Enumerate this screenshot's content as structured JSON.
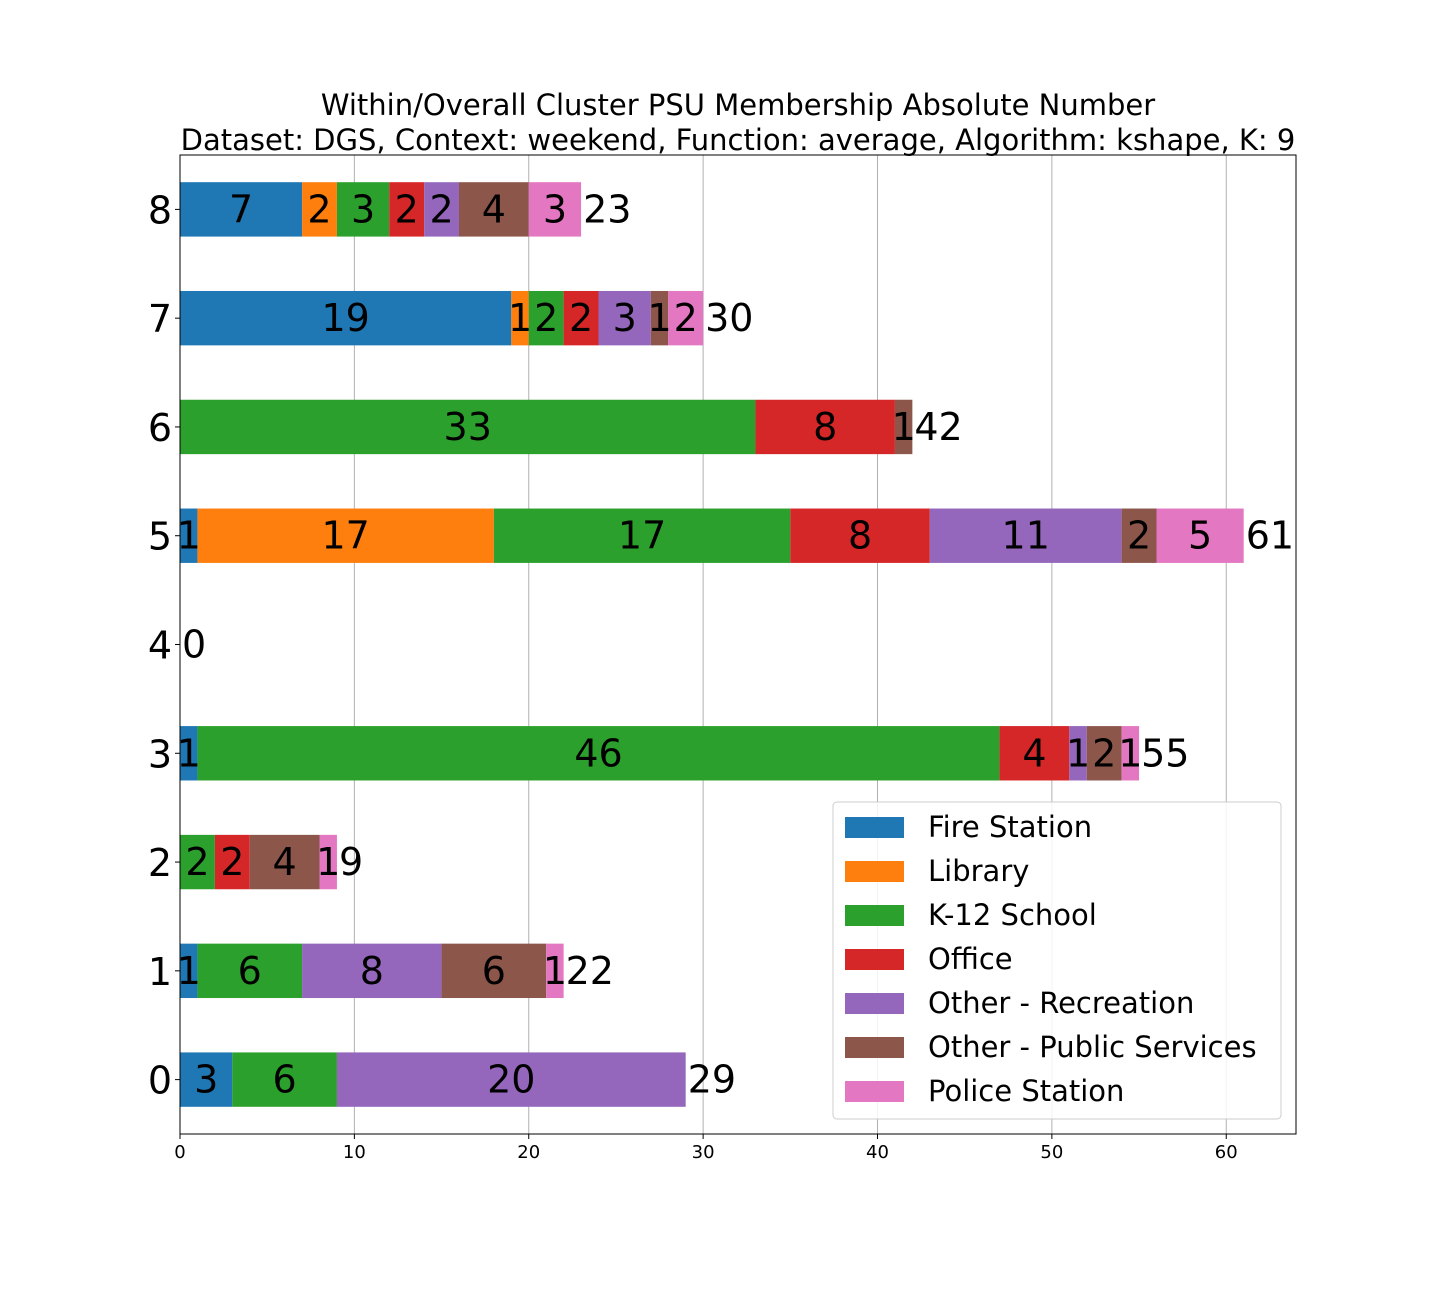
{
  "chart_data": {
    "type": "bar",
    "orientation": "horizontal",
    "stacked": true,
    "title": "Within/Overall Cluster PSU Membership Absolute Number",
    "subtitle": "Dataset: DGS, Context: weekend, Function: average, Algorithm: kshape, K: 9",
    "xlabel": "",
    "ylabel": "",
    "xlim": [
      0,
      64
    ],
    "xticks": [
      "0",
      "10",
      "20",
      "30",
      "40",
      "50",
      "60"
    ],
    "grid": "vertical",
    "legend_position": "lower-right",
    "categories": [
      "0",
      "1",
      "2",
      "3",
      "4",
      "5",
      "6",
      "7",
      "8"
    ],
    "series": [
      {
        "name": "Fire Station",
        "color": "#1f77b4",
        "values": [
          3,
          1,
          0,
          1,
          0,
          1,
          0,
          19,
          7
        ]
      },
      {
        "name": "Library",
        "color": "#ff7f0e",
        "values": [
          0,
          0,
          0,
          0,
          0,
          17,
          0,
          1,
          2
        ]
      },
      {
        "name": "K-12 School",
        "color": "#2ca02c",
        "values": [
          6,
          6,
          2,
          46,
          0,
          17,
          33,
          2,
          3
        ]
      },
      {
        "name": "Office",
        "color": "#d62728",
        "values": [
          0,
          0,
          2,
          4,
          0,
          8,
          8,
          2,
          2
        ]
      },
      {
        "name": "Other - Recreation",
        "color": "#9467bd",
        "values": [
          20,
          8,
          0,
          1,
          0,
          11,
          0,
          3,
          2
        ]
      },
      {
        "name": "Other - Public Services",
        "color": "#8c564b",
        "values": [
          0,
          6,
          4,
          2,
          0,
          2,
          1,
          1,
          4
        ]
      },
      {
        "name": "Police Station",
        "color": "#e377c2",
        "values": [
          0,
          1,
          1,
          1,
          0,
          5,
          0,
          2,
          3
        ]
      }
    ],
    "totals": [
      29,
      22,
      9,
      55,
      0,
      61,
      42,
      30,
      23
    ]
  }
}
